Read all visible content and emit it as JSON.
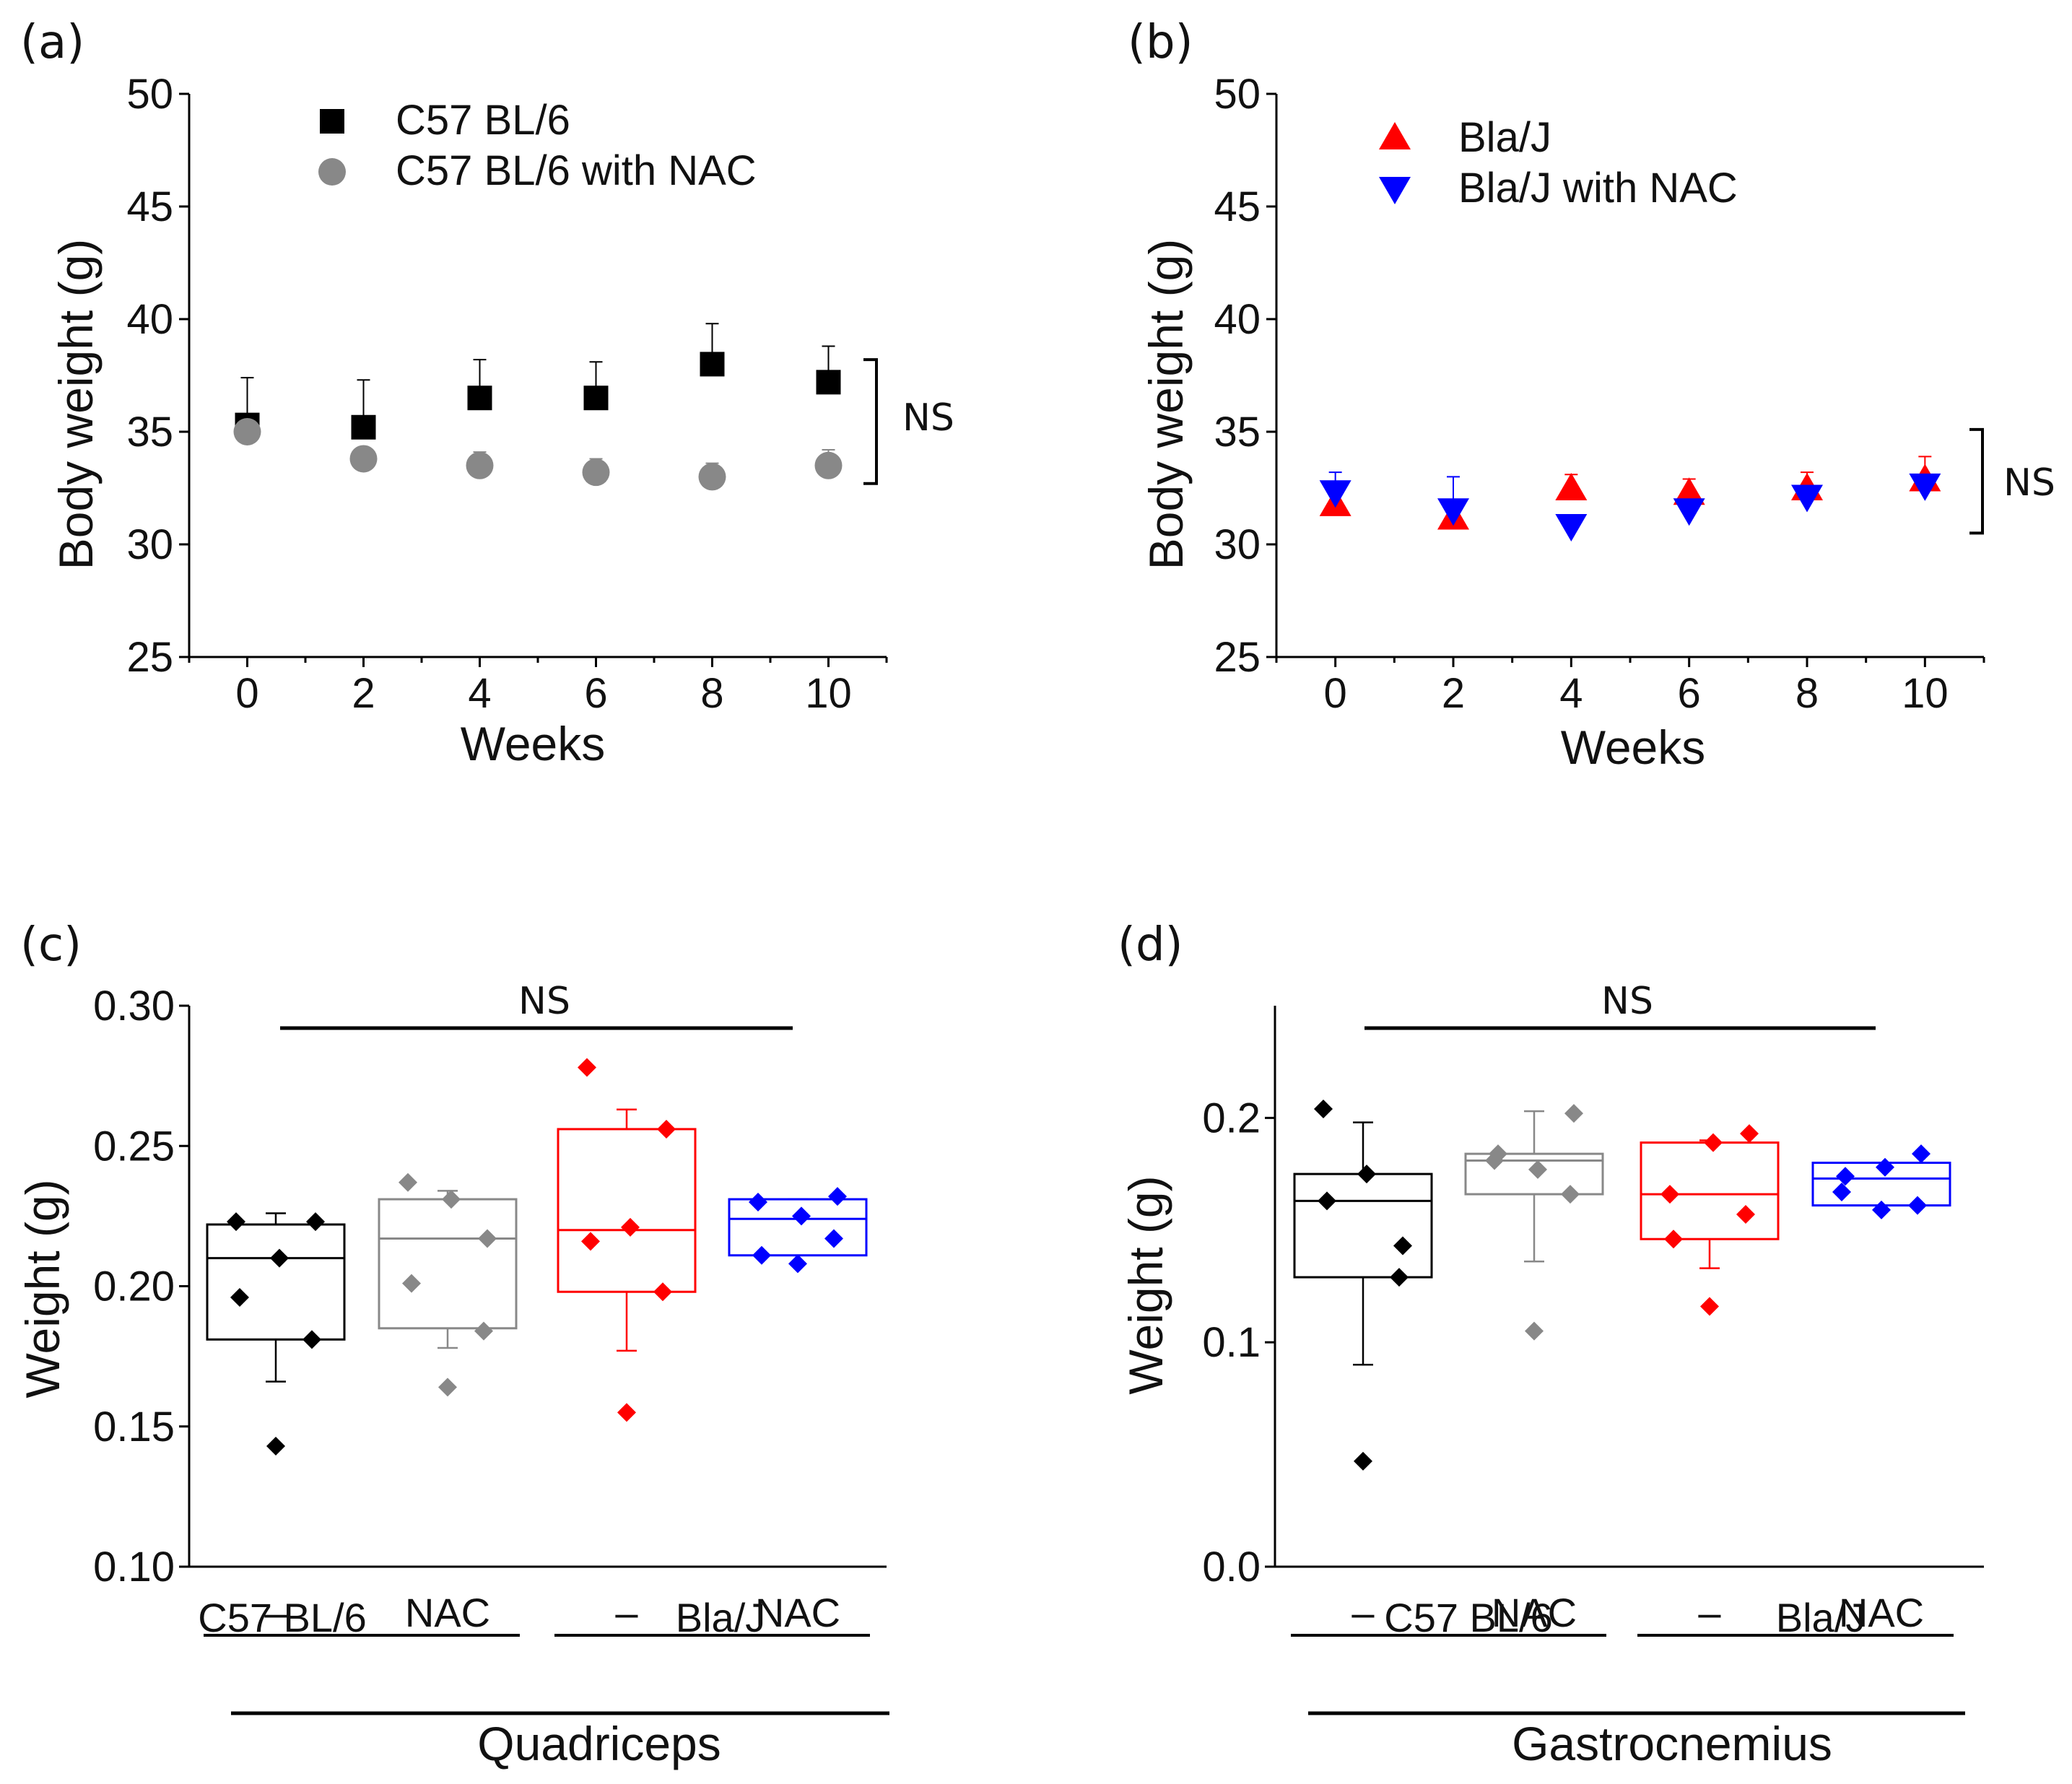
{
  "colors": {
    "black": "#000000",
    "gray": "#888888",
    "red": "#ff0000",
    "blue": "#0000ff"
  },
  "chart_data": [
    {
      "id": "a",
      "type": "scatter",
      "panel_label": "(a)",
      "xlabel": "Weeks",
      "ylabel": "Body weight (g)",
      "xlim": [
        -1,
        11
      ],
      "ylim": [
        25,
        50
      ],
      "xticks": [
        0,
        2,
        4,
        6,
        8,
        10
      ],
      "yticks": [
        25,
        30,
        35,
        40,
        45,
        50
      ],
      "legend_position": "top-left",
      "significance": "NS",
      "sig_range": [
        32.7,
        38.2
      ],
      "series": [
        {
          "name": "C57 BL/6",
          "color": "#000000",
          "marker": "square",
          "x": [
            0,
            2,
            4,
            6,
            8,
            10
          ],
          "y": [
            35.3,
            35.2,
            36.5,
            36.5,
            38.0,
            37.2
          ],
          "err": [
            2.1,
            2.1,
            1.7,
            1.6,
            1.8,
            1.6
          ]
        },
        {
          "name": "C57 BL/6 with NAC",
          "color": "#888888",
          "marker": "circle",
          "x": [
            0,
            2,
            4,
            6,
            8,
            10
          ],
          "y": [
            35.0,
            33.8,
            33.5,
            33.2,
            33.0,
            33.5
          ],
          "err": [
            0.5,
            0.4,
            0.6,
            0.6,
            0.6,
            0.7
          ]
        }
      ]
    },
    {
      "id": "b",
      "type": "scatter",
      "panel_label": "(b)",
      "xlabel": "Weeks",
      "ylabel": "Body weight (g)",
      "xlim": [
        -1,
        11
      ],
      "ylim": [
        25,
        50
      ],
      "xticks": [
        0,
        2,
        4,
        6,
        8,
        10
      ],
      "yticks": [
        25,
        30,
        35,
        40,
        45,
        50
      ],
      "legend_position": "top-left",
      "significance": "NS",
      "sig_range": [
        30.5,
        35.1
      ],
      "series": [
        {
          "name": "Bla/J",
          "color": "#ff0000",
          "marker": "triangle-up",
          "x": [
            0,
            2,
            4,
            6,
            8,
            10
          ],
          "y": [
            31.8,
            31.2,
            32.5,
            32.3,
            32.5,
            32.9
          ],
          "err": [
            0.6,
            0.5,
            0.6,
            0.6,
            0.7,
            1.0
          ]
        },
        {
          "name": "Bla/J with NAC",
          "color": "#0000ff",
          "marker": "triangle-down",
          "x": [
            0,
            2,
            4,
            6,
            8,
            10
          ],
          "y": [
            32.3,
            31.5,
            30.8,
            31.5,
            32.1,
            32.6
          ],
          "err": [
            0.9,
            1.5,
            0.5,
            0.4,
            0.4,
            0.5
          ]
        }
      ]
    },
    {
      "id": "c",
      "type": "box",
      "panel_label": "(c)",
      "ylabel": "Weight (g)",
      "ylim": [
        0.1,
        0.3
      ],
      "yticks": [
        "0.10",
        "0.15",
        "0.20",
        "0.25",
        "0.30"
      ],
      "tick_labels": [
        "–",
        "NAC",
        "–",
        "NAC"
      ],
      "groups": [
        "C57 BL/6",
        "Bla/J"
      ],
      "muscle": "Quadriceps",
      "significance": "NS",
      "boxes": [
        {
          "label": "C57 BL/6 –",
          "color": "#000000",
          "q1": 0.181,
          "median": 0.21,
          "q3": 0.222,
          "whisker_low": 0.166,
          "whisker_high": 0.226,
          "points": [
            0.223,
            0.223,
            0.21,
            0.196,
            0.181,
            0.143
          ]
        },
        {
          "label": "C57 BL/6 NAC",
          "color": "#888888",
          "q1": 0.185,
          "median": 0.217,
          "q3": 0.231,
          "whisker_low": 0.178,
          "whisker_high": 0.234,
          "points": [
            0.237,
            0.217,
            0.231,
            0.201,
            0.184,
            0.164
          ]
        },
        {
          "label": "Bla/J –",
          "color": "#ff0000",
          "q1": 0.198,
          "median": 0.22,
          "q3": 0.256,
          "whisker_low": 0.177,
          "whisker_high": 0.263,
          "points": [
            0.278,
            0.256,
            0.221,
            0.216,
            0.198,
            0.155
          ]
        },
        {
          "label": "Bla/J NAC",
          "color": "#0000ff",
          "q1": 0.211,
          "median": 0.224,
          "q3": 0.231,
          "whisker_low": 0.211,
          "whisker_high": 0.231,
          "points": [
            0.23,
            0.232,
            0.225,
            0.211,
            0.217,
            0.208
          ]
        }
      ]
    },
    {
      "id": "d",
      "type": "box",
      "panel_label": "(d)",
      "ylabel": "Weight (g)",
      "ylim": [
        0.0,
        0.25
      ],
      "yticks": [
        "0.0",
        "0.1",
        "0.2"
      ],
      "tick_labels": [
        "–",
        "NAC",
        "–",
        "NAC"
      ],
      "groups": [
        "C57 BL/6",
        "Bla/J"
      ],
      "muscle": "Gastrocnemius",
      "significance": "NS",
      "boxes": [
        {
          "label": "C57 BL/6 –",
          "color": "#000000",
          "q1": 0.129,
          "median": 0.163,
          "q3": 0.175,
          "whisker_low": 0.09,
          "whisker_high": 0.198,
          "points": [
            0.204,
            0.143,
            0.175,
            0.163,
            0.129,
            0.047
          ]
        },
        {
          "label": "C57 BL/6 NAC",
          "color": "#888888",
          "q1": 0.166,
          "median": 0.181,
          "q3": 0.184,
          "whisker_low": 0.136,
          "whisker_high": 0.203,
          "points": [
            0.181,
            0.202,
            0.177,
            0.184,
            0.166,
            0.105
          ]
        },
        {
          "label": "Bla/J –",
          "color": "#ff0000",
          "q1": 0.146,
          "median": 0.166,
          "q3": 0.189,
          "whisker_low": 0.133,
          "whisker_high": 0.19,
          "points": [
            0.166,
            0.193,
            0.189,
            0.146,
            0.157,
            0.116
          ]
        },
        {
          "label": "Bla/J NAC",
          "color": "#0000ff",
          "q1": 0.161,
          "median": 0.173,
          "q3": 0.18,
          "whisker_low": 0.161,
          "whisker_high": 0.18,
          "points": [
            0.167,
            0.184,
            0.178,
            0.174,
            0.161,
            0.159
          ]
        }
      ]
    }
  ]
}
